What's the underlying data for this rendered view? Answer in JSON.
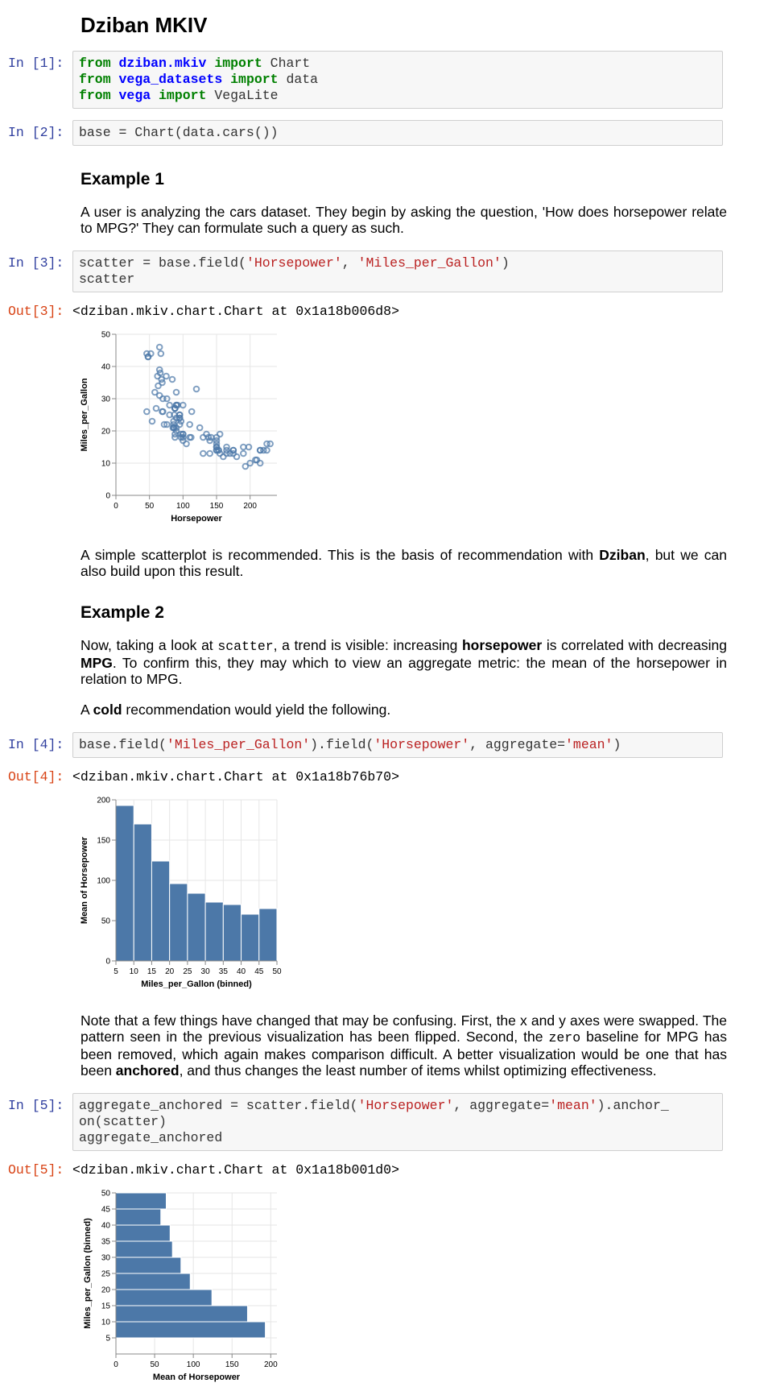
{
  "title": "Dziban MKIV",
  "cells": [
    {
      "prompt": "In [1]:",
      "code": [
        [
          {
            "text": "from",
            "color": "#008000",
            "bold": true
          },
          {
            "text": " "
          },
          {
            "text": "dziban.mkiv",
            "color": "#0000ff",
            "bold": true
          },
          {
            "text": " "
          },
          {
            "text": "import",
            "color": "#008000",
            "bold": true
          },
          {
            "text": " Chart"
          }
        ],
        [
          {
            "text": "from",
            "color": "#008000",
            "bold": true
          },
          {
            "text": " "
          },
          {
            "text": "vega_datasets",
            "color": "#0000ff",
            "bold": true
          },
          {
            "text": " "
          },
          {
            "text": "import",
            "color": "#008000",
            "bold": true
          },
          {
            "text": " data"
          }
        ],
        [
          {
            "text": "from",
            "color": "#008000",
            "bold": true
          },
          {
            "text": " "
          },
          {
            "text": "vega",
            "color": "#0000ff",
            "bold": true
          },
          {
            "text": " "
          },
          {
            "text": "import",
            "color": "#008000",
            "bold": true
          },
          {
            "text": " VegaLite"
          }
        ]
      ]
    },
    {
      "prompt": "In [2]:",
      "code": [
        [
          {
            "text": "base = Chart(data.cars())"
          }
        ]
      ]
    },
    {
      "heading": "Example 1"
    },
    {
      "para": [
        {
          "text": "A user is analyzing the cars dataset. They begin by asking the question, 'How does horsepower relate to MPG?' They can formulate such a query as such."
        }
      ]
    },
    {
      "prompt": "In [3]:",
      "code": [
        [
          {
            "text": "scatter = base.field("
          },
          {
            "text": "'Horsepower'",
            "color": "#ba2121"
          },
          {
            "text": ", "
          },
          {
            "text": "'Miles_per_Gallon'",
            "color": "#ba2121"
          },
          {
            "text": ")"
          }
        ],
        [
          {
            "text": "scatter"
          }
        ]
      ]
    },
    {
      "out_prompt": "Out[3]:",
      "output": "<dziban.mkiv.chart.Chart at 0x1a18b006d8>",
      "chart": {
        "type": "scatter",
        "color": "#4c78a8",
        "xlabel": "Horsepower",
        "ylabel": "Miles_per_Gallon",
        "xlim": [
          0,
          240
        ],
        "xticks": [
          0,
          50,
          100,
          150,
          200
        ],
        "ylim": [
          0,
          50
        ],
        "yticks": [
          0,
          10,
          20,
          30,
          40,
          50
        ],
        "grid": true,
        "x": [
          130,
          165,
          150,
          150,
          140,
          198,
          220,
          215,
          225,
          190,
          95,
          95,
          97,
          85,
          88,
          46,
          87,
          90,
          95,
          113,
          90,
          215,
          200,
          210,
          193,
          88,
          90,
          95,
          100,
          105,
          100,
          88,
          100,
          165,
          175,
          153,
          150,
          180,
          170,
          175,
          110,
          72,
          100,
          88,
          86,
          90,
          70,
          76,
          65,
          69,
          60,
          70,
          95,
          80,
          54,
          90,
          86,
          165,
          175,
          150,
          153,
          150,
          208,
          155,
          160,
          190,
          97,
          150,
          130,
          140,
          150,
          112,
          76,
          87,
          69,
          86,
          92,
          97,
          80,
          88,
          46,
          48,
          67,
          52,
          65,
          48,
          65,
          62,
          68,
          63,
          230,
          225,
          215,
          120,
          125,
          138,
          135,
          155,
          142,
          90,
          110,
          84,
          100,
          75,
          66,
          58
        ],
        "y": [
          18,
          15,
          18,
          16,
          17,
          15,
          14,
          14,
          14,
          15,
          24,
          22,
          18,
          21,
          27,
          26,
          25,
          24,
          25,
          26,
          21,
          10,
          10,
          11,
          9,
          27,
          28,
          25,
          19,
          16,
          17,
          19,
          18,
          14,
          14,
          14,
          14,
          12,
          13,
          13,
          18,
          22,
          19,
          18,
          23,
          28,
          30,
          30,
          31,
          35,
          27,
          26,
          24,
          25,
          23,
          20,
          21,
          13,
          14,
          15,
          14,
          17,
          11,
          13,
          12,
          13,
          19,
          15,
          13,
          13,
          14,
          18,
          22,
          21,
          26,
          22,
          28,
          23,
          28,
          27,
          44,
          43,
          44,
          44,
          46,
          43,
          39,
          37,
          36,
          34,
          16,
          16,
          14,
          33,
          21,
          18,
          19,
          19,
          18,
          32,
          22,
          36,
          28,
          37,
          38,
          32
        ]
      }
    },
    {
      "para": [
        {
          "text": "A simple scatterplot is recommended. This is the basis of recommendation with "
        },
        {
          "text": "Dziban",
          "bold": true
        },
        {
          "text": ", but we can also build upon this result."
        }
      ]
    },
    {
      "heading": "Example 2"
    },
    {
      "para": [
        {
          "text": "Now, taking a look at "
        },
        {
          "text": "scatter",
          "mono": true
        },
        {
          "text": ", a trend is visible: increasing "
        },
        {
          "text": "horsepower",
          "bold": true
        },
        {
          "text": " is correlated with decreasing "
        },
        {
          "text": "MPG",
          "bold": true
        },
        {
          "text": ". To confirm this, they may which to view an aggregate metric: the mean of the horsepower in relation to MPG."
        }
      ]
    },
    {
      "para": [
        {
          "text": "A "
        },
        {
          "text": "cold",
          "bold": true
        },
        {
          "text": " recommendation would yield the following."
        }
      ]
    },
    {
      "prompt": "In [4]:",
      "code": [
        [
          {
            "text": "base.field("
          },
          {
            "text": "'Miles_per_Gallon'",
            "color": "#ba2121"
          },
          {
            "text": ").field("
          },
          {
            "text": "'Horsepower'",
            "color": "#ba2121"
          },
          {
            "text": ", aggregate="
          },
          {
            "text": "'mean'",
            "color": "#ba2121"
          },
          {
            "text": ")"
          }
        ]
      ]
    },
    {
      "out_prompt": "Out[4]:",
      "output": "<dziban.mkiv.chart.Chart at 0x1a18b76b70>",
      "chart": {
        "type": "bar",
        "horizontal": false,
        "color": "#4c78a8",
        "xlabel": "Miles_per_Gallon (binned)",
        "ylabel": "Mean of Horsepower",
        "bins": [
          5,
          10,
          15,
          20,
          25,
          30,
          35,
          40,
          45,
          50
        ],
        "values": [
          193,
          170,
          124,
          96,
          84,
          73,
          70,
          58,
          65
        ],
        "xlim": [
          5,
          50
        ],
        "xticks": [
          5,
          10,
          15,
          20,
          25,
          30,
          35,
          40,
          45,
          50
        ],
        "ylim": [
          0,
          200
        ],
        "yticks": [
          0,
          50,
          100,
          150,
          200
        ],
        "grid": true
      }
    },
    {
      "para": [
        {
          "text": "Note that a few things have changed that may be confusing. First, the x and y axes were swapped. The pattern seen in the previous visualization has been flipped. Second, the "
        },
        {
          "text": "zero",
          "mono": true
        },
        {
          "text": " baseline for MPG has been removed, which again makes comparison difficult. A better visualization would be one that has been "
        },
        {
          "text": "anchored",
          "bold": true
        },
        {
          "text": ", and thus changes the least number of items whilst optimizing effectiveness."
        }
      ]
    },
    {
      "prompt": "In [5]:",
      "code": [
        [
          {
            "text": "aggregate_anchored = scatter.field("
          },
          {
            "text": "'Horsepower'",
            "color": "#ba2121"
          },
          {
            "text": ", aggregate="
          },
          {
            "text": "'mean'",
            "color": "#ba2121"
          },
          {
            "text": ").anchor_"
          }
        ],
        [
          {
            "text": "on(scatter)"
          }
        ],
        [
          {
            "text": "aggregate_anchored"
          }
        ]
      ]
    },
    {
      "out_prompt": "Out[5]:",
      "output": "<dziban.mkiv.chart.Chart at 0x1a18b001d0>",
      "chart": {
        "type": "bar",
        "horizontal": true,
        "color": "#4c78a8",
        "xlabel": "Mean of Horsepower",
        "ylabel": "Miles_per_Gallon (binned)",
        "bins": [
          5,
          10,
          15,
          20,
          25,
          30,
          35,
          40,
          45,
          50
        ],
        "values": [
          193,
          170,
          124,
          96,
          84,
          73,
          70,
          58,
          65
        ],
        "xlim": [
          0,
          208
        ],
        "xticks": [
          0,
          50,
          100,
          150,
          200
        ],
        "ylim": [
          0,
          50
        ],
        "yticks": [
          5,
          10,
          15,
          20,
          25,
          30,
          35,
          40,
          45,
          50
        ],
        "grid": true
      }
    }
  ]
}
